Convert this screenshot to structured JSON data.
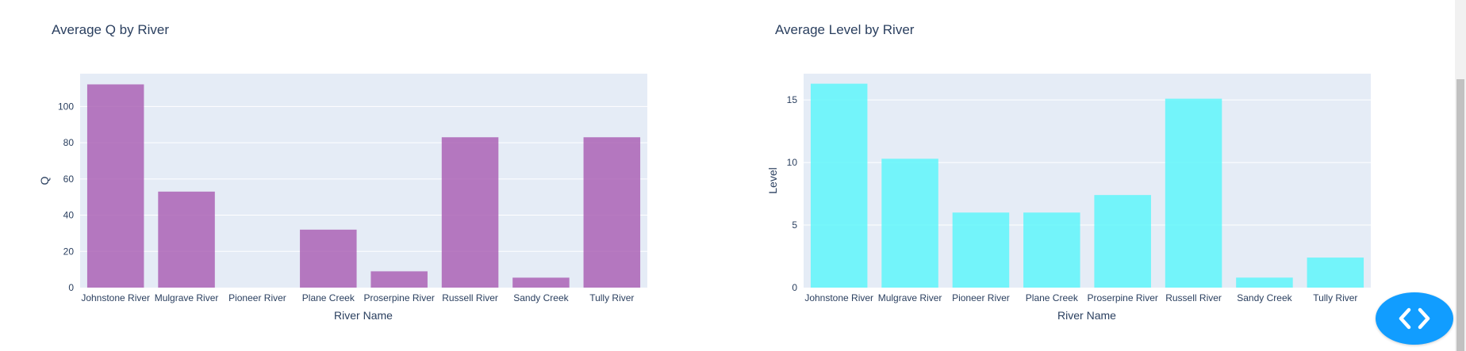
{
  "colors": {
    "chart1_bar": "#ab63b5",
    "chart2_bar": "#5ff6fa",
    "fab": "#119dff"
  },
  "fab_icon": "code-icon",
  "chart_data": [
    {
      "type": "bar",
      "title": "Average Q by River",
      "xlabel": "River Name",
      "ylabel": "Q",
      "categories": [
        "Johnstone River",
        "Mulgrave River",
        "Pioneer River",
        "Plane Creek",
        "Proserpine River",
        "Russell River",
        "Sandy Creek",
        "Tully River"
      ],
      "values": [
        112.2,
        53,
        0,
        32,
        9,
        83,
        5.5,
        83
      ],
      "ylim": [
        0,
        118.1
      ],
      "yticks": [
        "0",
        "20",
        "40",
        "60",
        "80",
        "100"
      ],
      "grid": true
    },
    {
      "type": "bar",
      "title": "Average Level by River",
      "xlabel": "River Name",
      "ylabel": "Level",
      "categories": [
        "Johnstone River",
        "Mulgrave River",
        "Pioneer River",
        "Plane Creek",
        "Proserpine River",
        "Russell River",
        "Sandy Creek",
        "Tully River"
      ],
      "values": [
        16.3,
        10.3,
        6.0,
        6.0,
        7.4,
        15.1,
        0.8,
        2.4
      ],
      "ylim": [
        0,
        17.1
      ],
      "yticks": [
        "0",
        "5",
        "10",
        "15"
      ],
      "grid": true
    }
  ]
}
